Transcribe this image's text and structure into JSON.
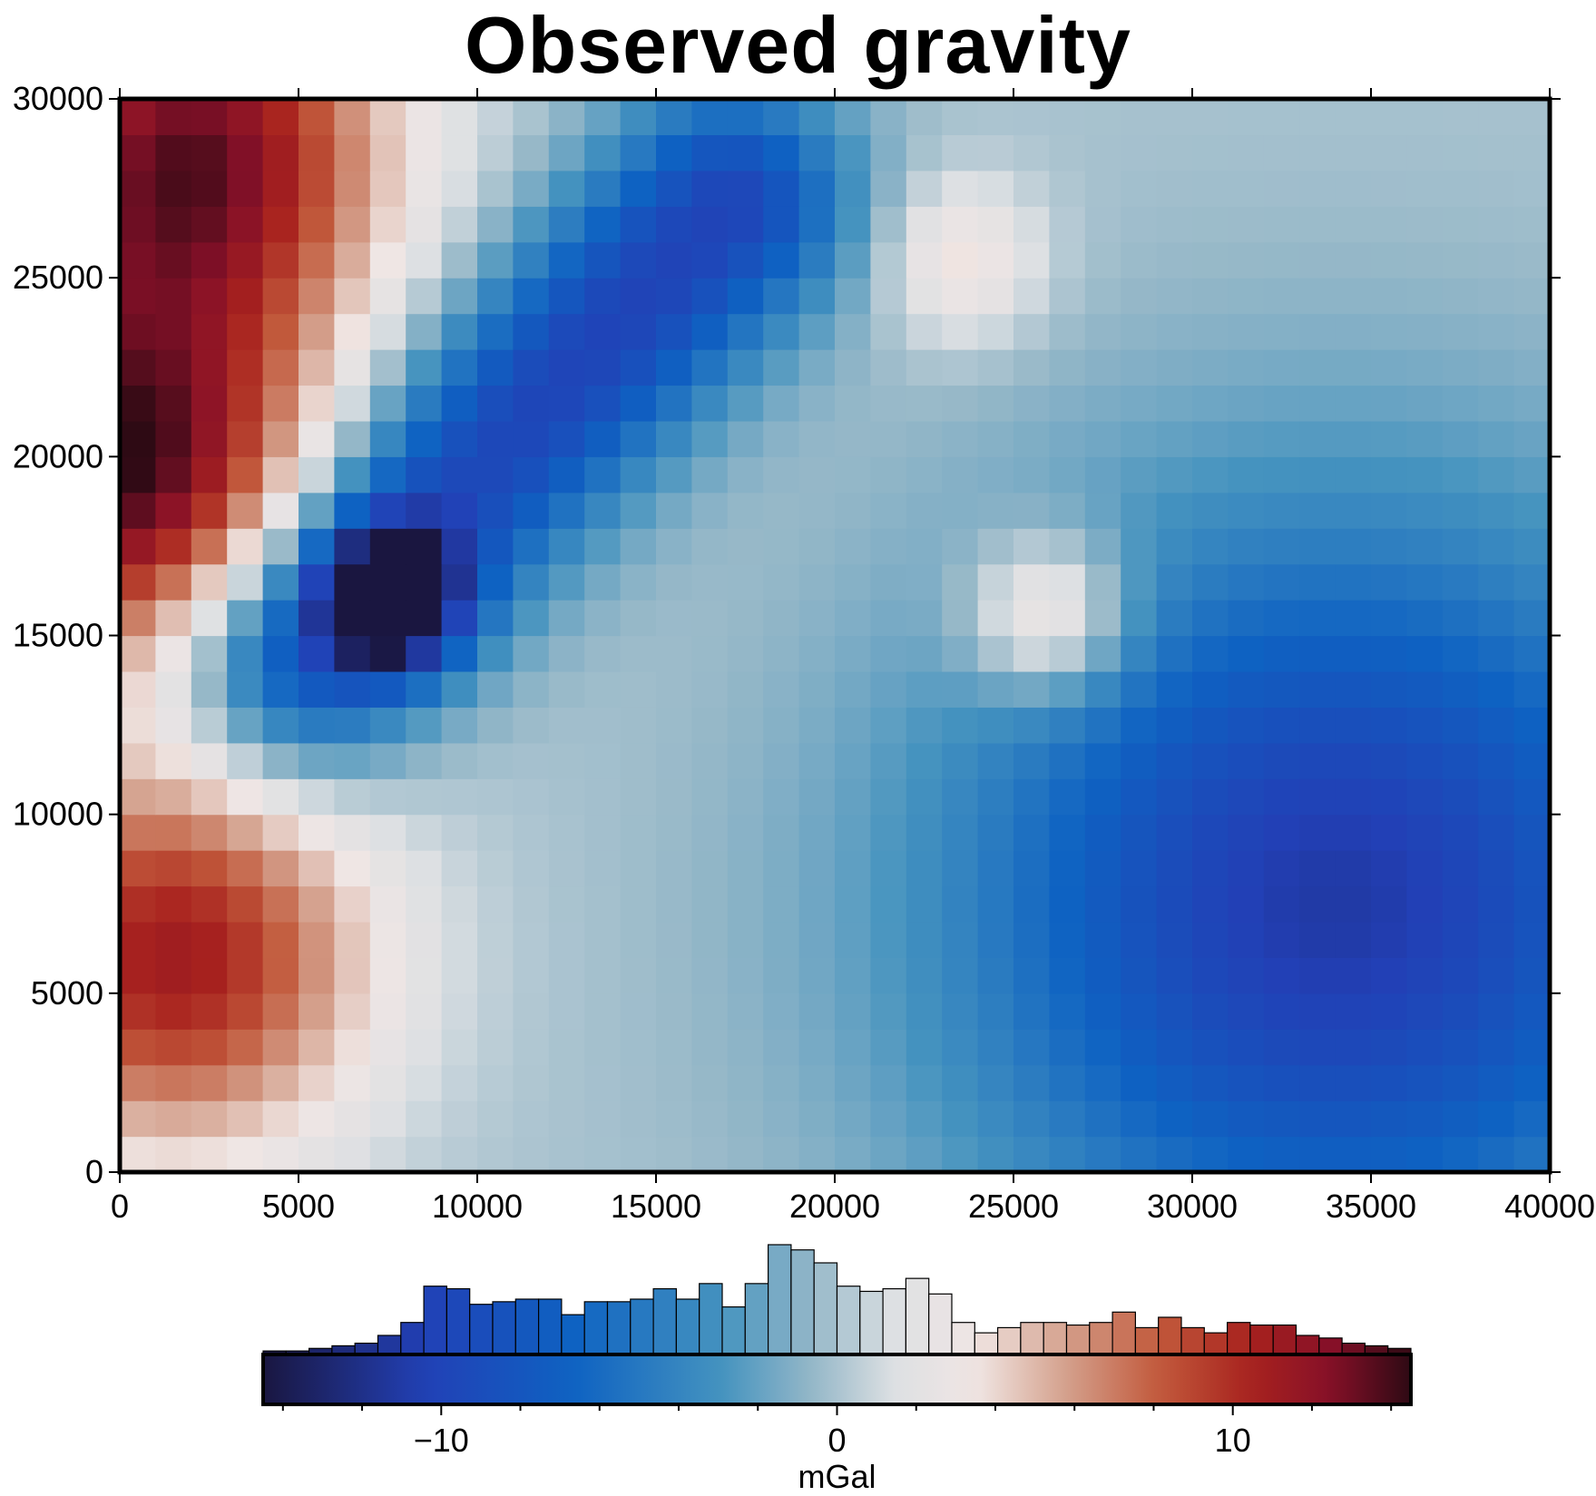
{
  "chart_data": [
    {
      "type": "heatmap",
      "title": "Observed gravity",
      "xlabel": "",
      "ylabel": "",
      "xlim": [
        0,
        40000
      ],
      "ylim": [
        0,
        30000
      ],
      "x_ticks": [
        "0",
        "5000",
        "10000",
        "15000",
        "20000",
        "25000",
        "30000",
        "35000",
        "40000"
      ],
      "y_ticks": [
        "0",
        "5000",
        "10000",
        "15000",
        "20000",
        "25000",
        "30000"
      ],
      "grid": false,
      "colormap": "vik",
      "color_range": [
        -14.5,
        14.5
      ],
      "description": "Gridded observed gravity field (mGal). Strong negative linear anomaly trending from upper-center toward lower-left, broad positive anomaly in upper-left and lower-left corners, broad negative anomaly in lower-right quadrant, small positive anomaly near (26000, 15500).",
      "features": [
        {
          "type": "linear_low",
          "from": [
            17000,
            27000
          ],
          "to": [
            5000,
            14500
          ],
          "value": -10,
          "width": 2400
        },
        {
          "type": "peak",
          "center": [
            7500,
            16000
          ],
          "value": -14
        },
        {
          "type": "high",
          "center": [
            0,
            19500
          ],
          "value": 14
        },
        {
          "type": "high",
          "center": [
            2000,
            28500
          ],
          "value": 13
        },
        {
          "type": "high",
          "center": [
            1500,
            6000
          ],
          "value": 11
        },
        {
          "type": "low",
          "center": [
            34000,
            7500
          ],
          "value": -11
        },
        {
          "type": "high",
          "center": [
            26000,
            15500
          ],
          "value": 6
        },
        {
          "type": "high",
          "center": [
            23500,
            25500
          ],
          "value": 4
        }
      ]
    },
    {
      "type": "bar",
      "title": "",
      "xlabel": "mGal",
      "ylabel": "",
      "xlim": [
        -14.5,
        14.5
      ],
      "x_ticks": [
        "−10",
        "0",
        "10"
      ],
      "bin_width": 0.58,
      "categories": [
        -14.21,
        -13.63,
        -13.05,
        -12.47,
        -11.89,
        -11.31,
        -10.73,
        -10.15,
        -9.57,
        -8.99,
        -8.41,
        -7.83,
        -7.25,
        -6.67,
        -6.09,
        -5.51,
        -4.93,
        -4.35,
        -3.77,
        -3.19,
        -2.61,
        -2.03,
        -1.45,
        -0.87,
        -0.29,
        0.29,
        0.87,
        1.45,
        2.03,
        2.61,
        3.19,
        3.77,
        4.35,
        4.93,
        5.51,
        6.09,
        6.67,
        7.25,
        7.83,
        8.41,
        8.99,
        9.57,
        10.15,
        10.73,
        11.31,
        11.89,
        12.47,
        13.05,
        13.63,
        14.21
      ],
      "values": [
        0.5,
        0.5,
        1.0,
        1.5,
        2.0,
        3.5,
        6.0,
        13.0,
        12.5,
        9.5,
        10.0,
        10.5,
        10.5,
        7.5,
        10.0,
        10.0,
        10.5,
        12.5,
        10.5,
        13.5,
        9.0,
        13.5,
        21.0,
        20.0,
        17.5,
        13.0,
        12.0,
        12.5,
        14.5,
        11.5,
        6.0,
        4.0,
        5.0,
        6.0,
        6.0,
        5.5,
        6.0,
        8.0,
        5.0,
        7.0,
        5.0,
        4.0,
        6.0,
        5.5,
        5.5,
        3.5,
        3.0,
        2.0,
        1.5,
        1.0
      ]
    }
  ],
  "colormap_stops": [
    {
      "v": 0.0,
      "c": "#1a1640"
    },
    {
      "v": 0.14,
      "c": "#2240b6"
    },
    {
      "v": 0.27,
      "c": "#0e62c2"
    },
    {
      "v": 0.4,
      "c": "#4593bf"
    },
    {
      "v": 0.48,
      "c": "#96b8c8"
    },
    {
      "v": 0.55,
      "c": "#dde0e3"
    },
    {
      "v": 0.62,
      "c": "#f0e6e4"
    },
    {
      "v": 0.7,
      "c": "#d4a08c"
    },
    {
      "v": 0.78,
      "c": "#c25a3c"
    },
    {
      "v": 0.86,
      "c": "#a8221e"
    },
    {
      "v": 0.93,
      "c": "#861028"
    },
    {
      "v": 1.0,
      "c": "#2e0a14"
    }
  ]
}
